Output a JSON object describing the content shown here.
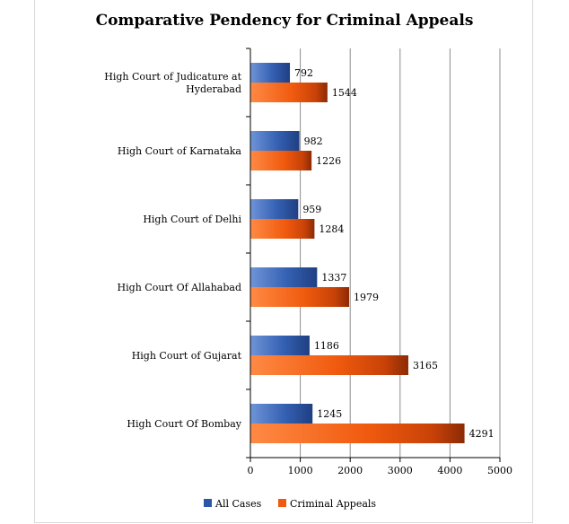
{
  "chart_data": {
    "type": "bar",
    "orientation": "horizontal",
    "title": "Comparative Pendency for Criminal Appeals",
    "xlabel": "",
    "ylabel": "",
    "categories": [
      "High Court of Judicature at Hyderabad",
      "High Court of Karnataka",
      "High Court of Delhi",
      "High Court Of Allahabad",
      "High Court of Gujarat",
      "High Court Of Bombay"
    ],
    "category_lines": [
      [
        "High Court of Judicature at",
        "Hyderabad"
      ],
      [
        "High Court of Karnataka"
      ],
      [
        "High Court of Delhi"
      ],
      [
        "High Court Of Allahabad"
      ],
      [
        "High Court of Gujarat"
      ],
      [
        "High Court Of Bombay"
      ]
    ],
    "series": [
      {
        "name": "All Cases",
        "values": [
          792,
          982,
          959,
          1337,
          1186,
          1245
        ],
        "color": "#2E56A8"
      },
      {
        "name": "Criminal Appeals",
        "values": [
          1544,
          1226,
          1284,
          1979,
          3165,
          4291
        ],
        "color": "#F05A0E"
      }
    ],
    "xlim": [
      0,
      5000
    ],
    "ticks": [
      "0",
      "1000",
      "2000",
      "3000",
      "4000",
      "5000"
    ],
    "grid": true,
    "data_labels": true,
    "legend": "bottom"
  }
}
